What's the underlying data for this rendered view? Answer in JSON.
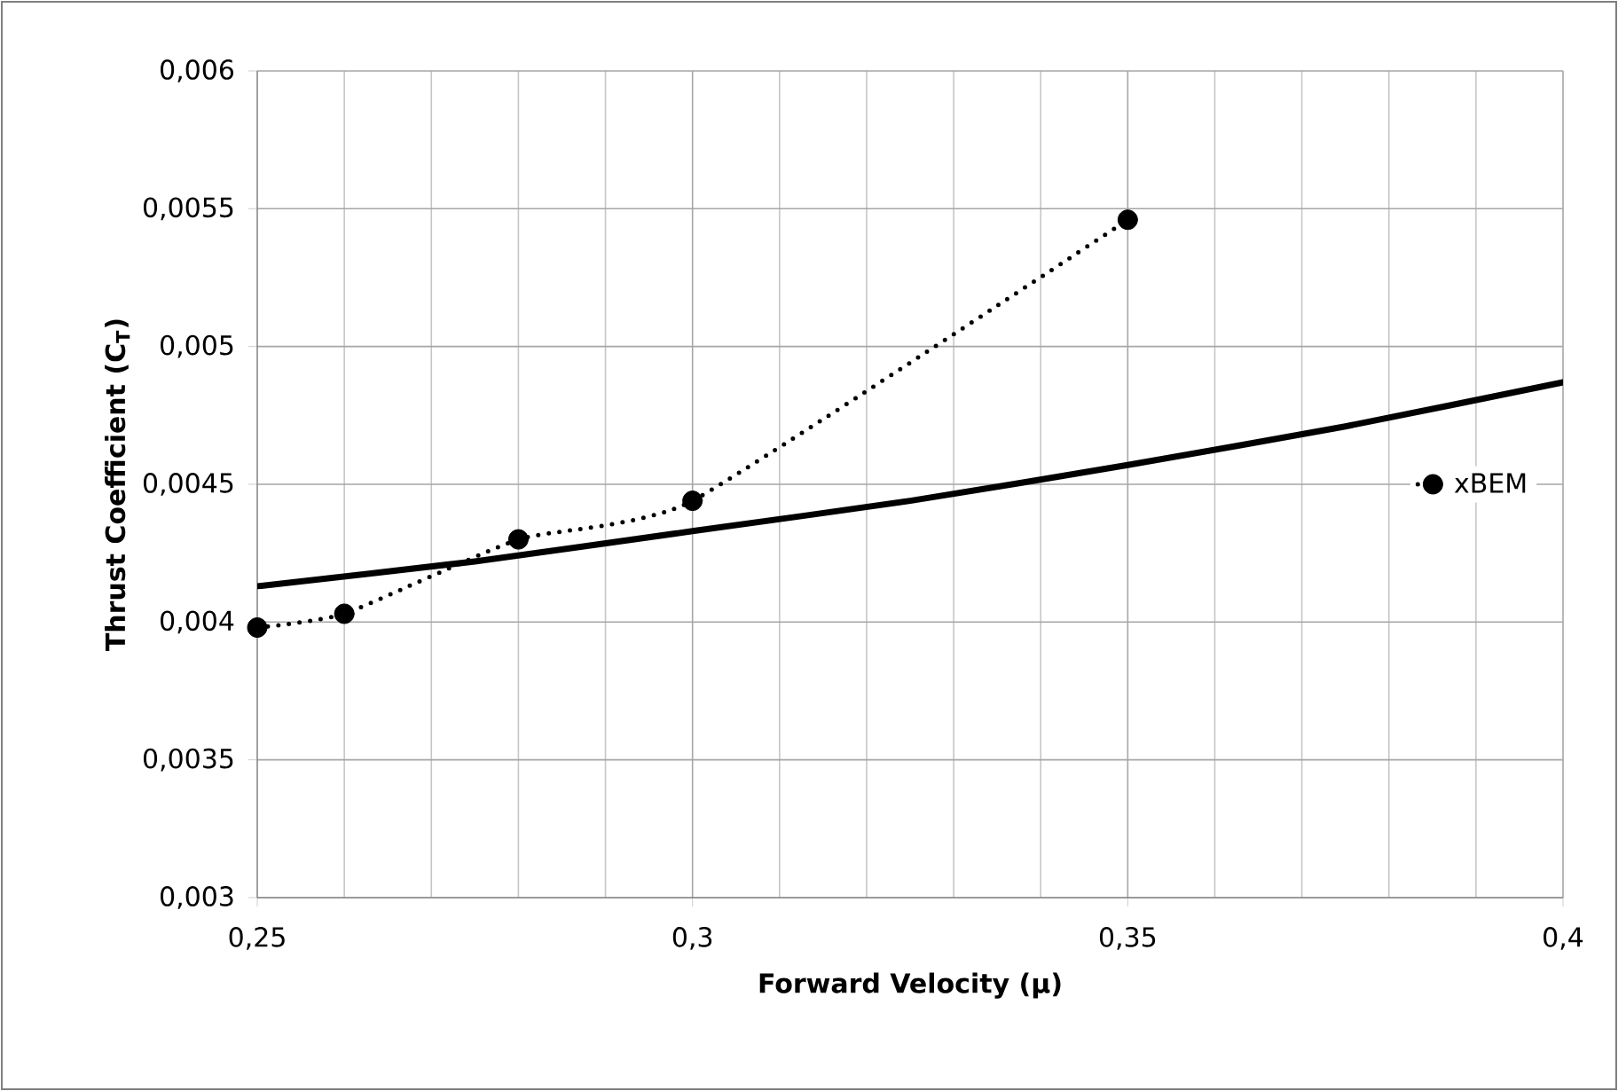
{
  "chart_data": {
    "type": "line",
    "xlabel": "Forward Velocity (μ)",
    "ylabel": "Thrust Coefficient (C$_{T}$)",
    "xlim": [
      0.25,
      0.4
    ],
    "ylim": [
      0.003,
      0.006
    ],
    "xticks": [
      {
        "value": 0.25,
        "label": "0,25"
      },
      {
        "value": 0.3,
        "label": "0,3"
      },
      {
        "value": 0.35,
        "label": "0,35"
      },
      {
        "value": 0.4,
        "label": "0,4"
      }
    ],
    "yticks": [
      {
        "value": 0.003,
        "label": "0,003"
      },
      {
        "value": 0.0035,
        "label": "0,0035"
      },
      {
        "value": 0.004,
        "label": "0,004"
      },
      {
        "value": 0.0045,
        "label": "0,0045"
      },
      {
        "value": 0.005,
        "label": "0,005"
      },
      {
        "value": 0.0055,
        "label": "0,0055"
      },
      {
        "value": 0.006,
        "label": "0,006"
      }
    ],
    "grid": true,
    "legend": "right",
    "series": [
      {
        "color": "#000000",
        "x": [
          0.25,
          0.275,
          0.3,
          0.325,
          0.35,
          0.375,
          0.4
        ],
        "values": [
          0.00413,
          0.00422,
          0.00433,
          0.00444,
          0.00457,
          0.00471,
          0.00487
        ],
        "marker": "none",
        "line_style": "solid"
      },
      {
        "name": "xBEM",
        "color": "#000000",
        "x": [
          0.25,
          0.26,
          0.28,
          0.3,
          0.35
        ],
        "values": [
          0.00398,
          0.00403,
          0.0043,
          0.00444,
          0.00546
        ],
        "marker": "circle",
        "line_style": "dotted"
      }
    ]
  }
}
